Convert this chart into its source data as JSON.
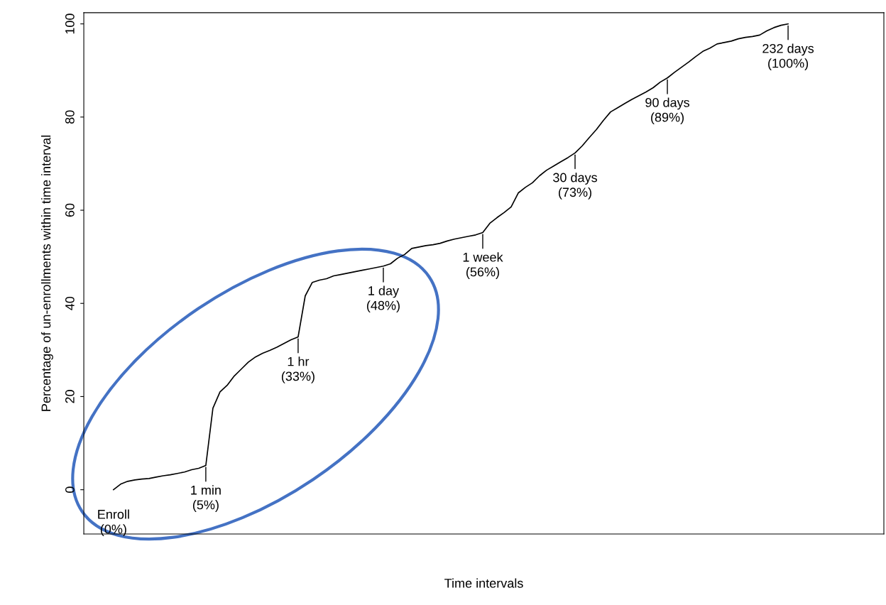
{
  "chart_data": {
    "type": "line",
    "xlabel": "Time intervals",
    "ylabel": "Percentage of un-enrollments within time interval",
    "categories": [
      null,
      null,
      null,
      null,
      null,
      null,
      null,
      null,
      null,
      null,
      null,
      null,
      null,
      null,
      null,
      null,
      null,
      null,
      null,
      null,
      null,
      null,
      null,
      null,
      null,
      null,
      null,
      null,
      null,
      null,
      null,
      null,
      null,
      null,
      null,
      null,
      null,
      null,
      null,
      null,
      null,
      null,
      null,
      null,
      null,
      null,
      null,
      null,
      null,
      null,
      null,
      null,
      null,
      null,
      null,
      null,
      null,
      null,
      null,
      null,
      null,
      null,
      null,
      null,
      null,
      null,
      null,
      null,
      null,
      null,
      null,
      null,
      null,
      null,
      null,
      null,
      null,
      null,
      null,
      null,
      null,
      null,
      null,
      null,
      null,
      null,
      null,
      null,
      null,
      null,
      null,
      null,
      null,
      null,
      null,
      null
    ],
    "series": [
      {
        "color": "#000000",
        "values": [
          0,
          1.2,
          1.8,
          2.1,
          2.3,
          2.4,
          2.7,
          3.0,
          3.2,
          3.5,
          3.8,
          4.3,
          4.6,
          5.2,
          17.5,
          21,
          22.4,
          24.4,
          25.9,
          27.4,
          28.5,
          29.3,
          29.9,
          30.6,
          31.4,
          32.2,
          32.8,
          41.6,
          44.5,
          45,
          45.3,
          45.9,
          46.2,
          46.5,
          46.8,
          47.1,
          47.4,
          47.7,
          48,
          48.5,
          49.7,
          50.5,
          51.8,
          52.1,
          52.4,
          52.6,
          52.9,
          53.4,
          53.8,
          54.1,
          54.4,
          54.7,
          55.2,
          57.2,
          58.4,
          59.5,
          60.7,
          63.7,
          64.9,
          65.9,
          67.4,
          68.6,
          69.5,
          70.4,
          71.3,
          72.3,
          73.8,
          75.6,
          77.3,
          79.3,
          81.1,
          82,
          82.9,
          83.8,
          84.6,
          85.4,
          86.3,
          87.5,
          88.4,
          89.6,
          90.7,
          91.8,
          93,
          94.1,
          94.8,
          95.7,
          96,
          96.3,
          96.8,
          97.1,
          97.3,
          97.6,
          98.5,
          99.2,
          99.7,
          100
        ]
      }
    ],
    "ylim": [
      -9.5,
      102.4
    ],
    "yticks": [
      0,
      20,
      40,
      60,
      80,
      100
    ],
    "tick_labels": "y",
    "grid": false,
    "marker": "none",
    "line_style": "solid",
    "annotations": [
      {
        "text": "Enroll\n(0%)",
        "y": 0
      },
      {
        "text": "1 min\n(5%)",
        "y": 5
      },
      {
        "text": "1 hr\n(33%)",
        "y": 33
      },
      {
        "text": "1 day\n(48%)",
        "y": 48
      },
      {
        "text": "1 week\n(56%)",
        "y": 56
      },
      {
        "text": "30 days\n(73%)",
        "y": 73
      },
      {
        "text": "90 days\n(89%)",
        "y": 89
      },
      {
        "text": "232 days\n(100%)",
        "y": 100
      }
    ]
  }
}
